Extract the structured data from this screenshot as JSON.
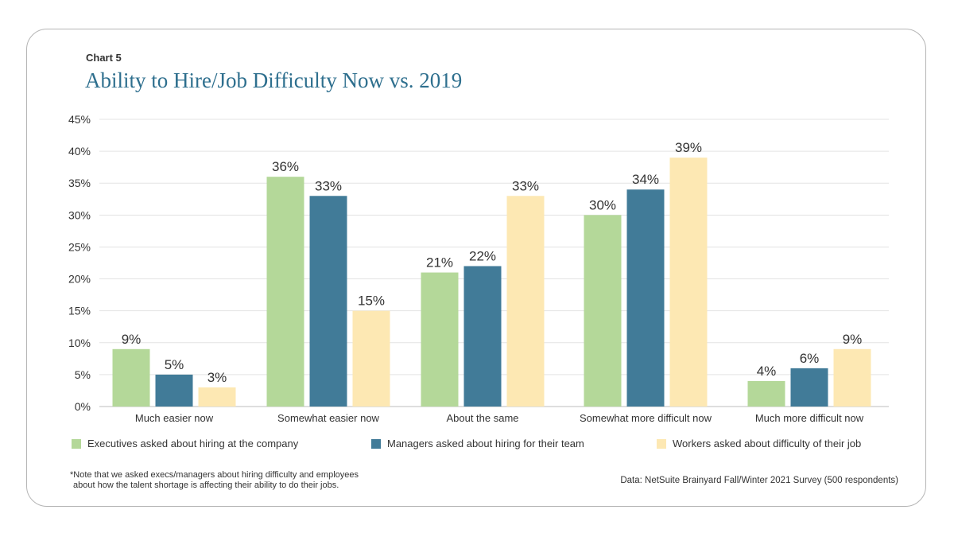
{
  "header": {
    "chart_label": "Chart 5",
    "title": "Ability to Hire/Job Difficulty Now vs. 2019"
  },
  "chart_data": {
    "type": "bar",
    "title": "Ability to Hire/Job Difficulty Now vs. 2019",
    "xlabel": "",
    "ylabel": "",
    "ylim": [
      0,
      45
    ],
    "yticks": [
      0,
      5,
      10,
      15,
      20,
      25,
      30,
      35,
      40,
      45
    ],
    "ytick_labels": [
      "0%",
      "5%",
      "10%",
      "15%",
      "20%",
      "25%",
      "30%",
      "35%",
      "40%",
      "45%"
    ],
    "grid": true,
    "categories": [
      "Much easier now",
      "Somewhat easier now",
      "About the same",
      "Somewhat more difficult now",
      "Much more difficult now"
    ],
    "series": [
      {
        "name": "Executives asked about hiring at the company",
        "color": "#b4d899",
        "values": [
          9,
          36,
          21,
          30,
          4
        ],
        "labels": [
          "9%",
          "36%",
          "21%",
          "30%",
          "4%"
        ]
      },
      {
        "name": "Managers asked about hiring for their team",
        "color": "#417b98",
        "values": [
          5,
          33,
          22,
          34,
          6
        ],
        "labels": [
          "5%",
          "33%",
          "22%",
          "34%",
          "6%"
        ]
      },
      {
        "name": "Workers asked about difficulty of their job",
        "color": "#fde8b3",
        "values": [
          3,
          15,
          33,
          39,
          9
        ],
        "labels": [
          "3%",
          "15%",
          "33%",
          "39%",
          "9%"
        ]
      }
    ],
    "legend_position": "bottom"
  },
  "footer": {
    "note_line1": "*Note that we asked execs/managers about hiring difficulty and employees",
    "note_line2": "about how the talent shortage is affecting their ability to do their jobs.",
    "source": "Data: NetSuite Brainyard Fall/Winter 2021 Survey (500 respondents)"
  }
}
